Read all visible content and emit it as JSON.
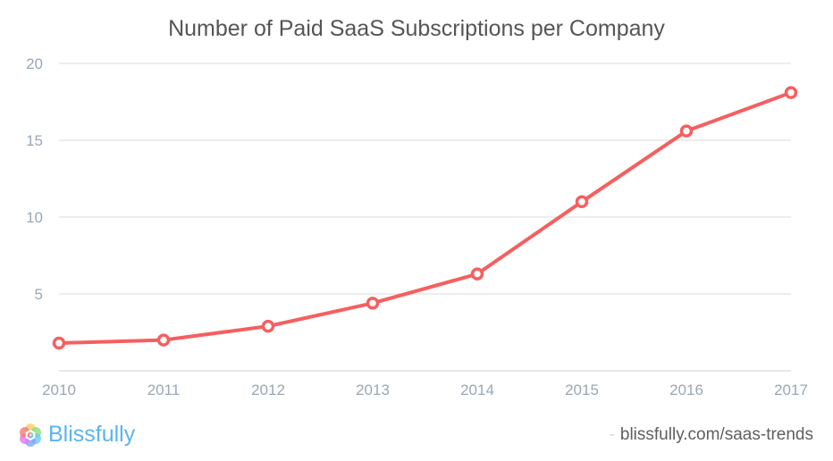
{
  "chart_data": {
    "type": "line",
    "title": "Number of Paid SaaS Subscriptions per Company",
    "xlabel": "",
    "ylabel": "",
    "categories": [
      "2010",
      "2011",
      "2012",
      "2013",
      "2014",
      "2015",
      "2016",
      "2017"
    ],
    "series": [
      {
        "name": "Paid SaaS Subscriptions",
        "values": [
          1.8,
          2.0,
          2.9,
          4.4,
          6.3,
          11.0,
          15.6,
          18.1
        ],
        "color": "#f65f5f"
      }
    ],
    "ylim": [
      0,
      20
    ],
    "yticks": [
      5,
      10,
      15,
      20
    ],
    "ytick_labels": [
      "5",
      "10",
      "15",
      "20"
    ],
    "grid": true,
    "legend": "none"
  },
  "footer": {
    "brand": "Blissfully",
    "dash": "-",
    "source": "blissfully.com/saas-trends"
  },
  "colors": {
    "line": "#f65f5f",
    "grid": "#e2e2e2",
    "tick": "#9aa7b4",
    "brand": "#5ab4ec"
  }
}
